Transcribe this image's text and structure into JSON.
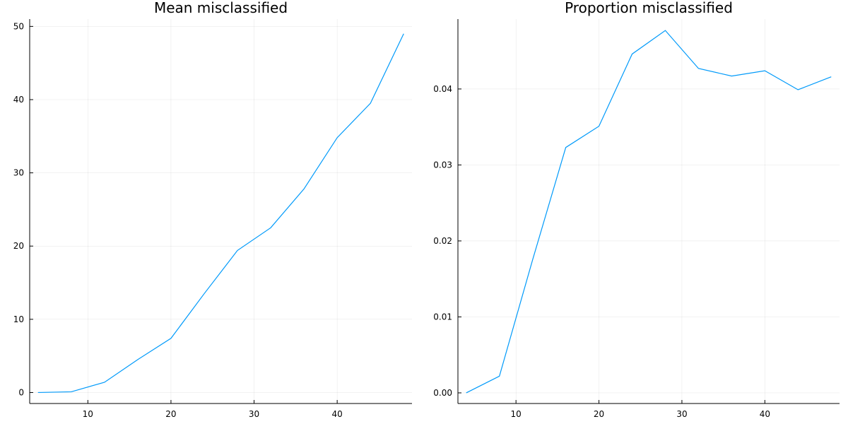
{
  "chart_data": [
    {
      "type": "line",
      "title": "Mean misclassified",
      "xlabel": "",
      "ylabel": "",
      "xlim": [
        3,
        49
      ],
      "ylim": [
        -1.5,
        51
      ],
      "xticks": [
        10,
        20,
        30,
        40
      ],
      "yticks": [
        0,
        10,
        20,
        30,
        40,
        50
      ],
      "ytick_decimals": 0,
      "grid": true,
      "legend": "none",
      "series": [
        {
          "color": "#009AFA",
          "x": [
            4,
            8,
            12,
            16,
            20,
            24,
            28,
            32,
            36,
            40,
            44,
            48
          ],
          "y": [
            0,
            0.1,
            1.4,
            4.5,
            7.4,
            13.5,
            19.4,
            22.5,
            27.8,
            34.8,
            39.5,
            49
          ]
        }
      ]
    },
    {
      "type": "line",
      "title": "Proportion misclassified",
      "xlabel": "",
      "ylabel": "",
      "xlim": [
        3,
        49
      ],
      "ylim": [
        -0.0014,
        0.0492
      ],
      "xticks": [
        10,
        20,
        30,
        40
      ],
      "yticks": [
        0.0,
        0.01,
        0.02,
        0.03,
        0.04
      ],
      "ytick_decimals": 2,
      "grid": true,
      "legend": "none",
      "series": [
        {
          "color": "#009AFA",
          "x": [
            4,
            8,
            12,
            16,
            20,
            24,
            28,
            32,
            36,
            40,
            44,
            48
          ],
          "y": [
            0.0,
            0.0022,
            0.0175,
            0.0323,
            0.0351,
            0.0446,
            0.0477,
            0.0427,
            0.0417,
            0.0424,
            0.0399,
            0.0416
          ]
        }
      ]
    }
  ]
}
